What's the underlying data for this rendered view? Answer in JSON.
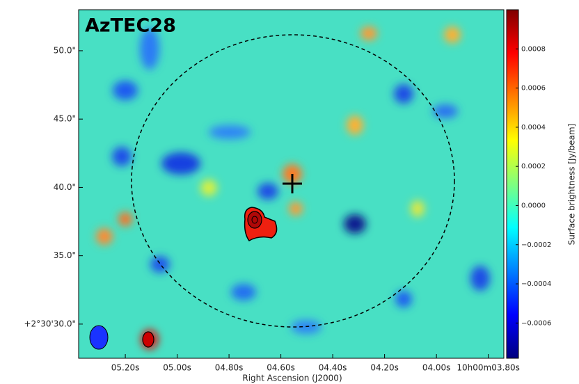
{
  "chart_data": {
    "type": "image",
    "title": "AzTEC28",
    "xlabel": "Right Ascension (J2000)",
    "xlim": [
      5.38,
      3.74
    ],
    "xticks": [
      {
        "value": 5.2,
        "label": "05.20s"
      },
      {
        "value": 5.0,
        "label": "05.00s"
      },
      {
        "value": 4.8,
        "label": "04.80s"
      },
      {
        "value": 4.6,
        "label": "04.60s"
      },
      {
        "value": 4.4,
        "label": "04.40s"
      },
      {
        "value": 4.2,
        "label": "04.20s"
      },
      {
        "value": 4.0,
        "label": "04.00s"
      },
      {
        "value": 3.8,
        "label": "10h00m03.80s"
      }
    ],
    "ylim": [
      27.5,
      53.0
    ],
    "yticks": [
      {
        "value": 30,
        "label": "+2°30'30.0\""
      },
      {
        "value": 35,
        "label": "35.0\""
      },
      {
        "value": 40,
        "label": "40.0\""
      },
      {
        "value": 45,
        "label": "45.0\""
      },
      {
        "value": 50,
        "label": "50.0\""
      }
    ],
    "colorbar": {
      "label": "Surface brightness [Jy/beam]",
      "colormap": "jet",
      "clim": [
        -0.00078,
        0.001
      ],
      "ticks": [
        {
          "value": -0.0006,
          "label": "−0.0006"
        },
        {
          "value": -0.0004,
          "label": "−0.0004"
        },
        {
          "value": -0.0002,
          "label": "−0.0002"
        },
        {
          "value": 0,
          "label": "0.0000"
        },
        0.0002,
        0.0004,
        0.0006,
        0.0008
      ]
    }
  }
}
